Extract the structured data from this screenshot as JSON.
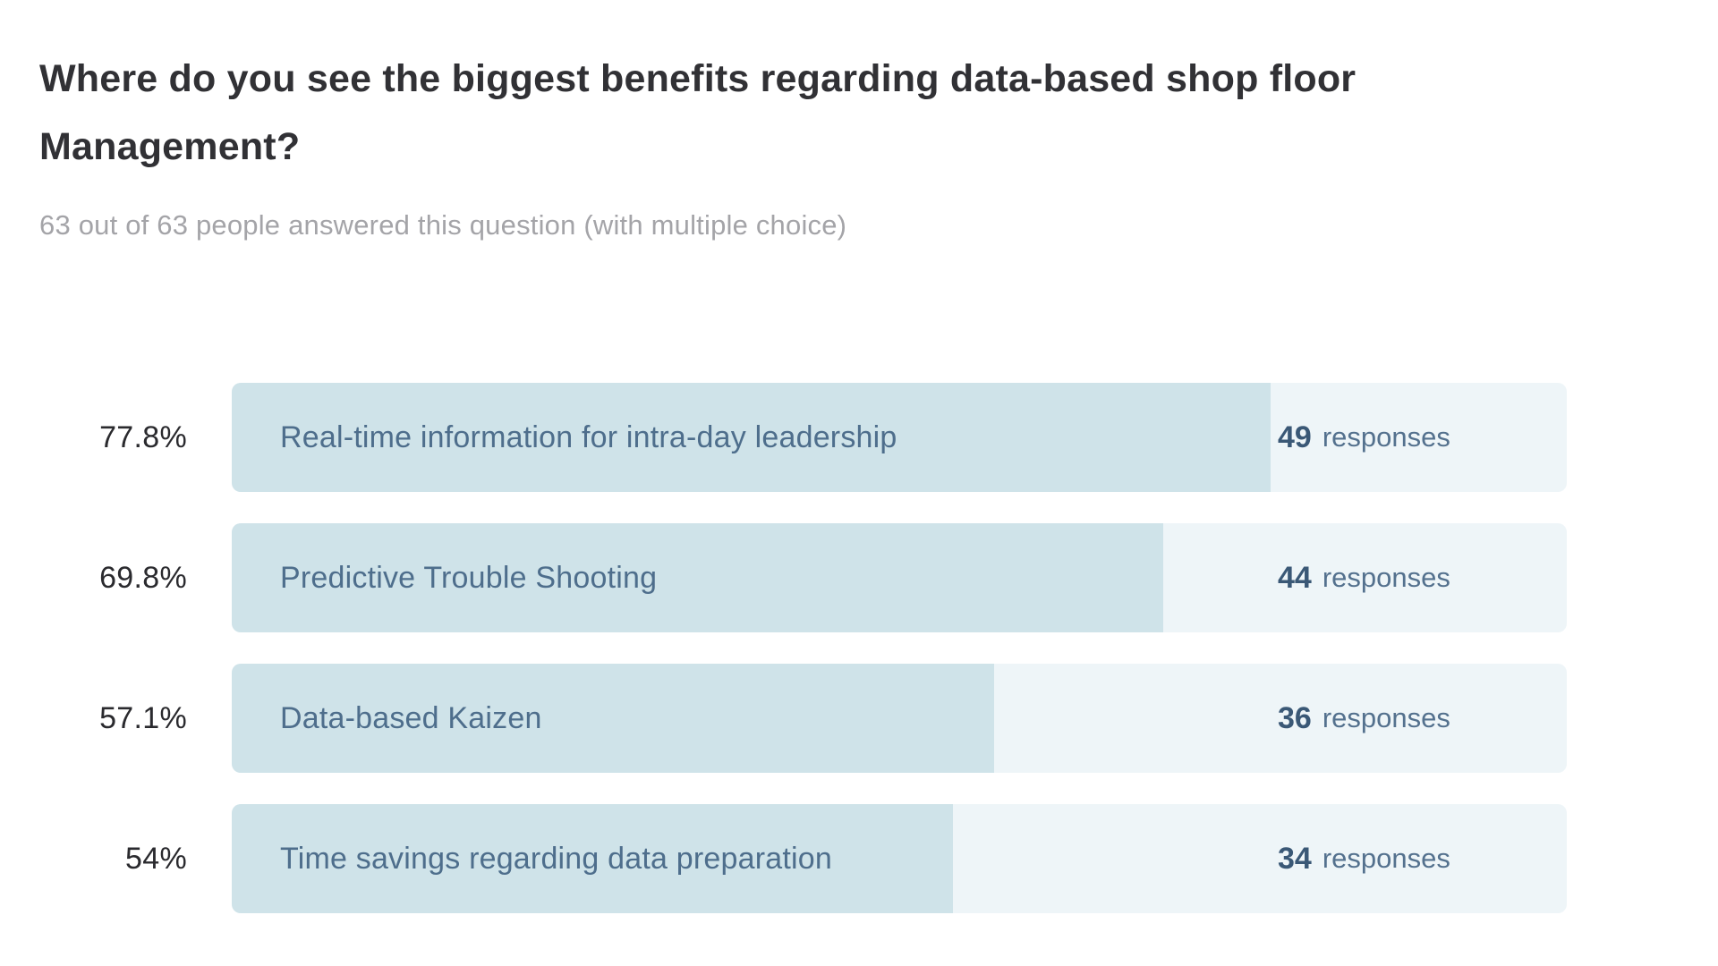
{
  "title": {
    "text": "Where do you see the biggest benefits regarding data-based shop floor Management?",
    "lines": [
      "Where do you see the biggest benefits regarding data-based shop floor",
      "Management?"
    ]
  },
  "subtitle": "63 out of 63 people answered this question (with multiple choice)",
  "colors": {
    "bar_fill": "#cfe3e9",
    "bar_track": "#eef5f8",
    "bar_label_text": "#4e6e8c",
    "count_text": "#3a5876",
    "responses_text": "#54718e",
    "percent_text": "#2a2a2e",
    "title_text": "#313135",
    "subtitle_text": "#a4a4a8"
  },
  "chart_data": {
    "type": "bar",
    "orientation": "horizontal",
    "title": "Where do you see the biggest benefits regarding data-based shop floor Management?",
    "subtitle": "63 out of 63 people answered this question (with multiple choice)",
    "categories": [
      "Real-time information for intra-day leadership",
      "Predictive Trouble Shooting",
      "Data-based Kaizen",
      "Time savings regarding data preparation"
    ],
    "values_percent": [
      77.8,
      69.8,
      57.1,
      54
    ],
    "values_responses": [
      49,
      44,
      36,
      34
    ],
    "xlim": [
      0,
      100
    ],
    "grid": false,
    "legend": false,
    "rows": [
      {
        "pct_label": "77.8%",
        "pct_value": 77.8,
        "label": "Real-time information for intra-day leadership",
        "count": "49",
        "count_word": "responses"
      },
      {
        "pct_label": "69.8%",
        "pct_value": 69.8,
        "label": "Predictive Trouble Shooting",
        "count": "44",
        "count_word": "responses"
      },
      {
        "pct_label": "57.1%",
        "pct_value": 57.1,
        "label": "Data-based Kaizen",
        "count": "36",
        "count_word": "responses"
      },
      {
        "pct_label": "54%",
        "pct_value": 54,
        "label": "Time savings regarding data preparation",
        "count": "34",
        "count_word": "responses"
      }
    ]
  }
}
